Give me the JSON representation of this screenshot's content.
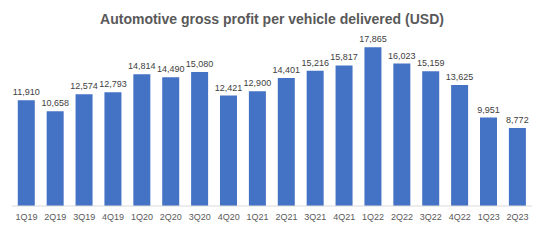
{
  "chart_data": {
    "type": "bar",
    "title": "Automotive gross profit per vehicle delivered (USD)",
    "categories": [
      "1Q19",
      "2Q19",
      "3Q19",
      "4Q19",
      "1Q20",
      "2Q20",
      "3Q20",
      "4Q20",
      "1Q21",
      "2Q21",
      "3Q21",
      "4Q21",
      "1Q22",
      "2Q22",
      "3Q22",
      "4Q22",
      "1Q23",
      "2Q23"
    ],
    "values": [
      11910,
      10658,
      12574,
      12793,
      14814,
      14490,
      15080,
      12421,
      12900,
      14401,
      15216,
      15817,
      17865,
      16023,
      15159,
      13625,
      9951,
      8772
    ],
    "value_labels": [
      "11,910",
      "10,658",
      "12,574",
      "12,793",
      "14,814",
      "14,490",
      "15,080",
      "12,421",
      "12,900",
      "14,401",
      "15,216",
      "15,817",
      "17,865",
      "16,023",
      "15,159",
      "13,625",
      "9,951",
      "8,772"
    ],
    "color": "#4472c4",
    "data_labels": true,
    "grid": false,
    "tick_labels": "x"
  }
}
